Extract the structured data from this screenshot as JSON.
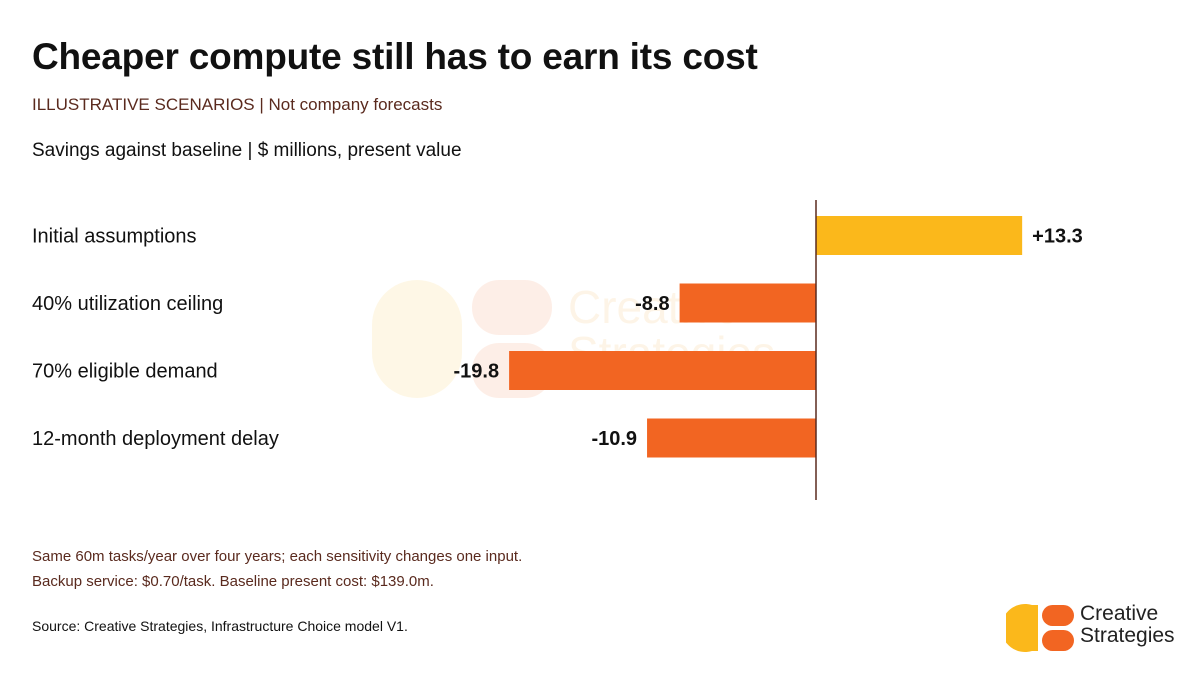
{
  "header": {
    "title": "Cheaper compute still has to earn its cost",
    "subtitle": "ILLUSTRATIVE SCENARIOS | Not company forecasts",
    "units": "Savings against baseline | $ millions, present value"
  },
  "chart_data": {
    "type": "bar",
    "orientation": "horizontal",
    "categories": [
      "Initial assumptions",
      "40% utilization ceiling",
      "70% eligible demand",
      "12-month deployment delay"
    ],
    "values": [
      13.3,
      -8.8,
      -19.8,
      -10.9
    ],
    "value_labels": [
      "+13.3",
      "-8.8",
      "-19.8",
      "-10.9"
    ],
    "title": "Cheaper compute still has to earn its cost",
    "subtitle": "ILLUSTRATIVE SCENARIOS | Not company forecasts",
    "xlabel": "Savings against baseline | $ millions, present value",
    "ylabel": "",
    "xlim": [
      -20,
      13.3
    ],
    "grid": false,
    "legend": "none",
    "colors": {
      "positive": "#fbb81b",
      "negative": "#f26522",
      "axis": "#5a2a1e",
      "label": "#111111"
    }
  },
  "watermark": {
    "line1": "Creative",
    "line2": "Strategies"
  },
  "notes": [
    "Same 60m tasks/year over four years; each sensitivity changes one input.",
    "Backup service: $0.70/task. Baseline present cost: $139.0m."
  ],
  "source": "Source: Creative Strategies, Infrastructure Choice model V1.",
  "logo": {
    "line1": "Creative",
    "line2": "Strategies",
    "colors": {
      "yellow": "#fbb81b",
      "orange": "#f26522"
    }
  }
}
